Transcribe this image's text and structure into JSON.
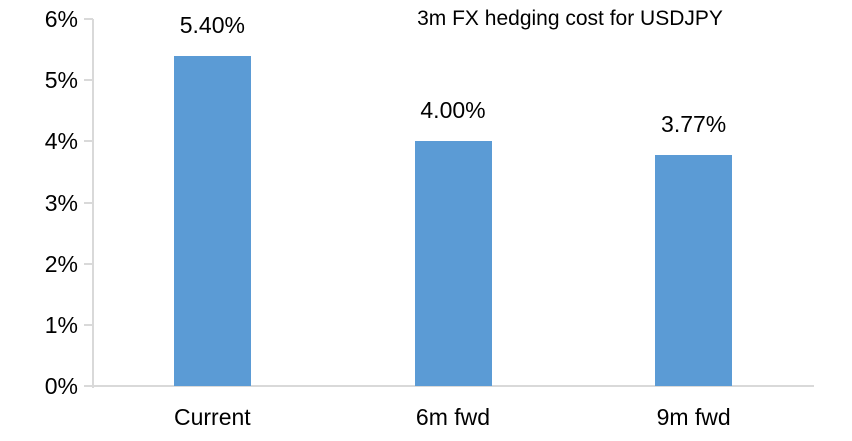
{
  "chart_data": {
    "type": "bar",
    "title": "3m FX hedging cost for USDJPY",
    "categories": [
      "Current",
      "6m fwd",
      "9m fwd"
    ],
    "values": [
      5.4,
      4.0,
      3.77
    ],
    "data_labels": [
      "5.40%",
      "4.00%",
      "3.77%"
    ],
    "y_tick_labels": [
      "0%",
      "1%",
      "2%",
      "3%",
      "4%",
      "5%",
      "6%"
    ],
    "ylim": [
      0,
      6
    ],
    "xlabel": "",
    "ylabel": "",
    "grid": false,
    "legend": "none",
    "bar_color": "#5b9bd5",
    "axis_color": "#d9d9d9",
    "text_color": "#000000",
    "background_color": "#ffffff"
  }
}
